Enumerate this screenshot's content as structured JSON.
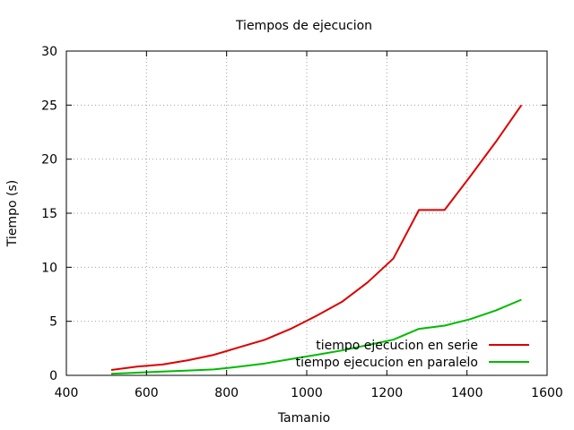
{
  "chart_data": {
    "type": "line",
    "title": "Tiempos de ejecucion",
    "xlabel": "Tamanio",
    "ylabel": "Tiempo (s)",
    "xlim": [
      400,
      1600
    ],
    "ylim": [
      0,
      30
    ],
    "xticks": [
      400,
      600,
      800,
      1000,
      1200,
      1400,
      1600
    ],
    "yticks": [
      0,
      5,
      10,
      15,
      20,
      25,
      30
    ],
    "grid": true,
    "legend_position": "bottom-right",
    "series": [
      {
        "name": "tiempo ejecucion en serie",
        "color": "#dd0000",
        "x": [
          512,
          576,
          640,
          704,
          768,
          832,
          896,
          960,
          1024,
          1088,
          1152,
          1216,
          1280,
          1344,
          1408,
          1472,
          1536
        ],
        "y": [
          0.5,
          0.8,
          1.0,
          1.4,
          1.9,
          2.6,
          3.3,
          4.3,
          5.5,
          6.8,
          8.6,
          10.8,
          15.3,
          15.3,
          18.4,
          21.6,
          25.0
        ]
      },
      {
        "name": "tiempo ejecucion en paralelo",
        "color": "#00bb00",
        "x": [
          512,
          576,
          640,
          704,
          768,
          832,
          896,
          960,
          1024,
          1088,
          1152,
          1216,
          1280,
          1344,
          1408,
          1472,
          1536
        ],
        "y": [
          0.15,
          0.25,
          0.35,
          0.45,
          0.55,
          0.8,
          1.1,
          1.5,
          1.9,
          2.3,
          2.8,
          3.3,
          4.3,
          4.6,
          5.2,
          6.0,
          7.0
        ]
      }
    ]
  }
}
